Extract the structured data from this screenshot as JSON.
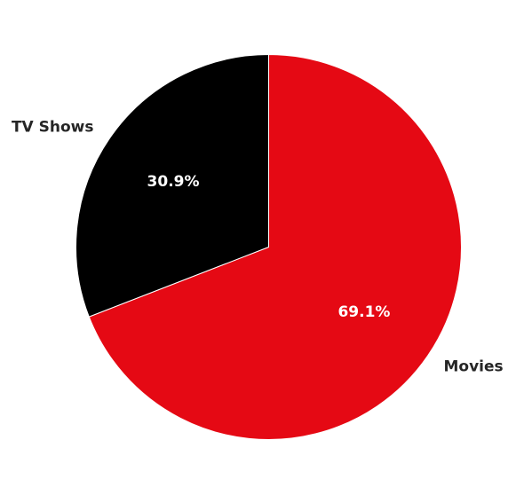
{
  "chart_data": {
    "type": "pie",
    "categories": [
      "Movies",
      "TV Shows"
    ],
    "values": [
      69.1,
      30.9
    ],
    "value_labels": [
      "69.1%",
      "30.9%"
    ],
    "colors": [
      "#e50914",
      "#000000"
    ],
    "start_angle_deg": 90,
    "direction": "clockwise",
    "edge_color": "#ffffff"
  }
}
